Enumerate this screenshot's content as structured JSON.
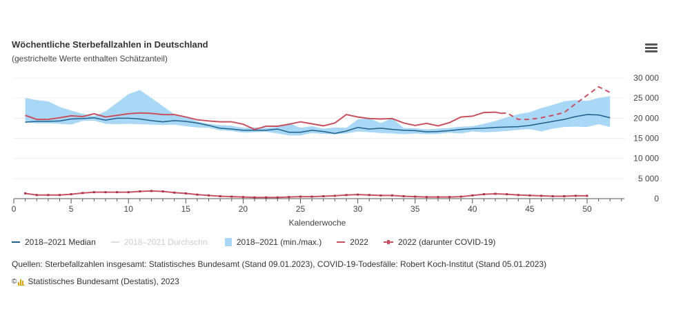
{
  "header": {
    "title": "Wöchentliche Sterbefallzahlen in Deutschland",
    "subtitle": "(gestrichelte Werte enthalten Schätzanteil)",
    "menu_icon": "hamburger-menu-icon"
  },
  "chart_data": {
    "type": "line",
    "title": "Wöchentliche Sterbefallzahlen in Deutschland",
    "subtitle": "(gestrichelte Werte enthalten Schätzanteil)",
    "xlabel": "Kalenderwoche",
    "ylabel": "",
    "xlim": [
      0,
      53
    ],
    "ylim": [
      0,
      30000
    ],
    "x_ticks": [
      0,
      5,
      10,
      15,
      20,
      25,
      30,
      35,
      40,
      45,
      50
    ],
    "x_tick_labels": [
      "0",
      "5",
      "10",
      "15",
      "20",
      "25",
      "30",
      "35",
      "40",
      "45",
      "50"
    ],
    "y_ticks": [
      0,
      5000,
      10000,
      15000,
      20000,
      25000,
      30000
    ],
    "y_tick_labels": [
      "0",
      "5 000",
      "10 000",
      "15 000",
      "20 000",
      "25 000",
      "30 000"
    ],
    "y_axis_side": "right",
    "grid": true,
    "legend_position": "bottom",
    "x": [
      1,
      2,
      3,
      4,
      5,
      6,
      7,
      8,
      9,
      10,
      11,
      12,
      13,
      14,
      15,
      16,
      17,
      18,
      19,
      20,
      21,
      22,
      23,
      24,
      25,
      26,
      27,
      28,
      29,
      30,
      31,
      32,
      33,
      34,
      35,
      36,
      37,
      38,
      39,
      40,
      41,
      42,
      43,
      44,
      45,
      46,
      47,
      48,
      49,
      50,
      51,
      52
    ],
    "series": [
      {
        "name": "2018–2021 (min./max.)",
        "kind": "range",
        "color": "#a8d8f5",
        "min": [
          19000,
          18700,
          18700,
          18600,
          18400,
          19300,
          19400,
          18600,
          18500,
          18600,
          18500,
          18400,
          18300,
          18400,
          18000,
          17700,
          17600,
          17000,
          16800,
          16400,
          16500,
          16600,
          16200,
          15700,
          15700,
          16300,
          16100,
          16000,
          16200,
          16700,
          16500,
          16300,
          16200,
          16000,
          16200,
          16000,
          16100,
          16400,
          16200,
          16700,
          16500,
          16600,
          16800,
          17100,
          17300,
          16700,
          17400,
          17800,
          17900,
          17800,
          18500,
          17800
        ],
        "max": [
          25000,
          24500,
          24200,
          22800,
          21900,
          21100,
          20500,
          21700,
          23800,
          26000,
          27000,
          25000,
          23000,
          21000,
          20400,
          19200,
          18600,
          18300,
          18100,
          17600,
          17700,
          17600,
          17800,
          18800,
          17600,
          18000,
          17400,
          17700,
          17600,
          19700,
          20000,
          18800,
          20000,
          17600,
          17500,
          17200,
          17400,
          17600,
          17900,
          18000,
          18600,
          19300,
          20200,
          21000,
          21500,
          22500,
          23300,
          24200,
          24500,
          24300,
          25000,
          25500
        ]
      },
      {
        "name": "2018–2021 Median",
        "kind": "line",
        "color": "#1f5f8b",
        "values": [
          19000,
          19200,
          19200,
          19300,
          19800,
          19900,
          20100,
          19500,
          20000,
          20000,
          19800,
          19400,
          19100,
          19400,
          19200,
          18800,
          18200,
          17500,
          17300,
          17000,
          17000,
          17000,
          17300,
          16500,
          16500,
          17000,
          16700,
          16200,
          16800,
          17700,
          17300,
          17500,
          17200,
          17000,
          16900,
          16600,
          16700,
          16900,
          17200,
          17400,
          17500,
          17700,
          17800,
          17900,
          18200,
          18700,
          19200,
          19700,
          20400,
          20900,
          20800,
          20100
        ]
      },
      {
        "name": "2018–2021 Durchschn.",
        "kind": "line",
        "color": "#cccccc",
        "hidden": true,
        "values": []
      },
      {
        "name": "2022",
        "kind": "line",
        "color": "#c8505f",
        "values": [
          20700,
          19700,
          19700,
          20100,
          20600,
          20400,
          21100,
          20300,
          20700,
          21100,
          21300,
          21200,
          20900,
          20900,
          20300,
          19600,
          19300,
          19100,
          19100,
          18500,
          17200,
          18000,
          18000,
          18500,
          19100,
          18600,
          18100,
          18800,
          20900,
          20300,
          19900,
          19800,
          19900,
          18800,
          18200,
          18700,
          18100,
          18900,
          20300,
          20500,
          21400,
          21500,
          21300,
          19700,
          19700,
          20100,
          20700,
          21400,
          23600,
          25700,
          27800,
          26400
        ],
        "estimated_from_week": 43
      },
      {
        "name": "2022 (darunter COVID-19)",
        "kind": "line-markers",
        "color": "#c8505f",
        "values": [
          1300,
          900,
          900,
          900,
          1100,
          1400,
          1600,
          1600,
          1600,
          1600,
          1800,
          1900,
          1800,
          1500,
          1300,
          1000,
          800,
          600,
          500,
          400,
          300,
          300,
          300,
          400,
          500,
          500,
          600,
          700,
          900,
          1000,
          900,
          800,
          800,
          600,
          500,
          400,
          400,
          400,
          500,
          800,
          1100,
          1200,
          1100,
          900,
          800,
          700,
          600,
          600,
          700,
          700
        ]
      }
    ]
  },
  "legend": {
    "items": [
      {
        "label": "2018–2021 Median",
        "color": "#1f5f8b",
        "type": "line",
        "active": true
      },
      {
        "label": "2018–2021 Durchschn.",
        "color": "#dddddd",
        "type": "line",
        "active": false
      },
      {
        "label": "2018–2021 (min./max.)",
        "color": "#a8d8f5",
        "type": "box",
        "active": true
      },
      {
        "label": "2022",
        "color": "#c8505f",
        "type": "line",
        "active": true
      },
      {
        "label": "2022 (darunter COVID-19)",
        "color": "#c8505f",
        "type": "line-marker",
        "active": true
      }
    ]
  },
  "footer": {
    "source": "Quellen: Sterbefallzahlen insgesamt: Statistisches Bundesamt (Stand 09.01.2023), COVID-19-Todesfälle: Robert Koch-Institut (Stand 05.01.2023)",
    "copyright_symbol": "©",
    "copyright": "Statistisches Bundesamt (Destatis), 2023"
  }
}
